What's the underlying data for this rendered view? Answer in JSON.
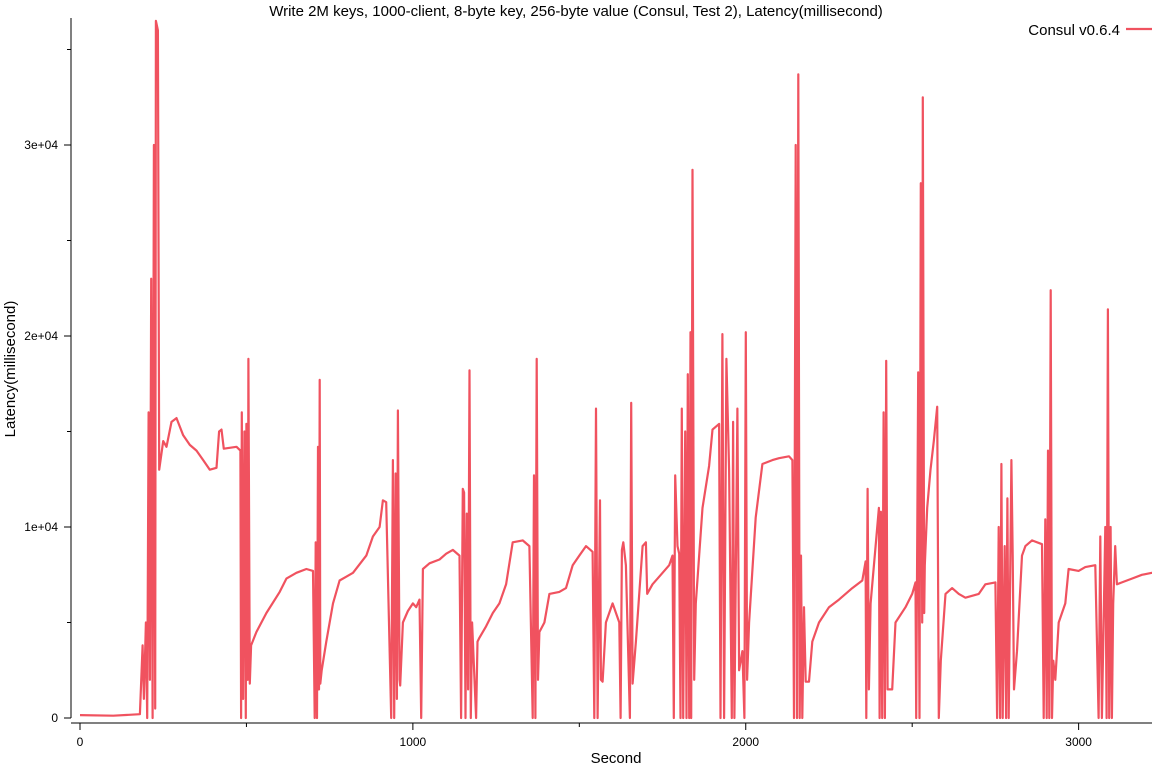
{
  "chart_data": {
    "type": "line",
    "title": "Write 2M keys, 1000-client, 8-byte key, 256-byte value (Consul, Test 2), Latency(millisecond)",
    "xlabel": "Second",
    "ylabel": "Latency(millisecond)",
    "xlim": [
      0,
      3250
    ],
    "ylim": [
      0,
      36500
    ],
    "x_ticks": [
      0,
      1000,
      2000,
      3000
    ],
    "x_tick_labels": [
      "0",
      "1000",
      "2000",
      "3000"
    ],
    "x_minor_ticks": [
      500,
      1500,
      2500
    ],
    "y_ticks": [
      0,
      10000,
      20000,
      30000
    ],
    "y_tick_labels": [
      "0",
      "1e+04",
      "2e+04",
      "3e+04"
    ],
    "y_minor_ticks": [
      5000,
      15000,
      25000,
      35000
    ],
    "grid": false,
    "legend_position": "top-right",
    "series": [
      {
        "name": "Consul v0.6.4",
        "color": "#f0525f",
        "points": [
          [
            0,
            150
          ],
          [
            100,
            120
          ],
          [
            180,
            200
          ],
          [
            188,
            3800
          ],
          [
            192,
            1000
          ],
          [
            198,
            5000
          ],
          [
            202,
            0
          ],
          [
            206,
            16000
          ],
          [
            210,
            2000
          ],
          [
            214,
            23000
          ],
          [
            218,
            0
          ],
          [
            222,
            30000
          ],
          [
            226,
            500
          ],
          [
            228,
            36500
          ],
          [
            234,
            36000
          ],
          [
            238,
            13000
          ],
          [
            250,
            14500
          ],
          [
            260,
            14200
          ],
          [
            275,
            15500
          ],
          [
            290,
            15700
          ],
          [
            310,
            14800
          ],
          [
            330,
            14300
          ],
          [
            350,
            14000
          ],
          [
            370,
            13500
          ],
          [
            390,
            13000
          ],
          [
            410,
            13100
          ],
          [
            418,
            15000
          ],
          [
            425,
            15100
          ],
          [
            432,
            14100
          ],
          [
            470,
            14200
          ],
          [
            482,
            14000
          ],
          [
            484,
            0
          ],
          [
            486,
            16000
          ],
          [
            490,
            1000
          ],
          [
            494,
            15000
          ],
          [
            498,
            0
          ],
          [
            500,
            15400
          ],
          [
            504,
            2000
          ],
          [
            506,
            18800
          ],
          [
            510,
            1800
          ],
          [
            514,
            3800
          ],
          [
            530,
            4500
          ],
          [
            560,
            5500
          ],
          [
            600,
            6600
          ],
          [
            620,
            7300
          ],
          [
            650,
            7600
          ],
          [
            680,
            7800
          ],
          [
            700,
            7700
          ],
          [
            705,
            0
          ],
          [
            708,
            9200
          ],
          [
            712,
            0
          ],
          [
            715,
            14200
          ],
          [
            718,
            1500
          ],
          [
            720,
            17700
          ],
          [
            722,
            1800
          ],
          [
            726,
            2500
          ],
          [
            740,
            4000
          ],
          [
            760,
            6000
          ],
          [
            780,
            7200
          ],
          [
            800,
            7400
          ],
          [
            820,
            7600
          ],
          [
            860,
            8500
          ],
          [
            880,
            9500
          ],
          [
            900,
            10000
          ],
          [
            910,
            11400
          ],
          [
            920,
            11300
          ],
          [
            935,
            0
          ],
          [
            940,
            13500
          ],
          [
            944,
            0
          ],
          [
            948,
            12800
          ],
          [
            952,
            1000
          ],
          [
            955,
            16100
          ],
          [
            960,
            2000
          ],
          [
            962,
            1700
          ],
          [
            970,
            5000
          ],
          [
            985,
            5600
          ],
          [
            1000,
            6000
          ],
          [
            1010,
            5800
          ],
          [
            1020,
            6200
          ],
          [
            1025,
            0
          ],
          [
            1030,
            7800
          ],
          [
            1050,
            8100
          ],
          [
            1080,
            8300
          ],
          [
            1100,
            8600
          ],
          [
            1120,
            8800
          ],
          [
            1140,
            8500
          ],
          [
            1145,
            0
          ],
          [
            1150,
            12000
          ],
          [
            1154,
            11800
          ],
          [
            1158,
            0
          ],
          [
            1162,
            10700
          ],
          [
            1166,
            1500
          ],
          [
            1170,
            18200
          ],
          [
            1174,
            0
          ],
          [
            1178,
            5000
          ],
          [
            1190,
            0
          ],
          [
            1194,
            4000
          ],
          [
            1200,
            4200
          ],
          [
            1220,
            4800
          ],
          [
            1240,
            5500
          ],
          [
            1260,
            6000
          ],
          [
            1280,
            7000
          ],
          [
            1300,
            9200
          ],
          [
            1330,
            9300
          ],
          [
            1350,
            9000
          ],
          [
            1360,
            0
          ],
          [
            1364,
            12700
          ],
          [
            1368,
            0
          ],
          [
            1372,
            18800
          ],
          [
            1376,
            2000
          ],
          [
            1380,
            4500
          ],
          [
            1395,
            5000
          ],
          [
            1410,
            6500
          ],
          [
            1440,
            6600
          ],
          [
            1460,
            6800
          ],
          [
            1480,
            8000
          ],
          [
            1500,
            8500
          ],
          [
            1520,
            9000
          ],
          [
            1540,
            8700
          ],
          [
            1545,
            0
          ],
          [
            1550,
            16200
          ],
          [
            1555,
            0
          ],
          [
            1562,
            11400
          ],
          [
            1565,
            2000
          ],
          [
            1570,
            1900
          ],
          [
            1580,
            5000
          ],
          [
            1600,
            6000
          ],
          [
            1620,
            5000
          ],
          [
            1624,
            0
          ],
          [
            1628,
            8800
          ],
          [
            1632,
            9200
          ],
          [
            1640,
            8000
          ],
          [
            1652,
            0
          ],
          [
            1656,
            16500
          ],
          [
            1660,
            1800
          ],
          [
            1670,
            4000
          ],
          [
            1690,
            9000
          ],
          [
            1700,
            9200
          ],
          [
            1704,
            6500
          ],
          [
            1720,
            7000
          ],
          [
            1740,
            7400
          ],
          [
            1770,
            8000
          ],
          [
            1780,
            8500
          ],
          [
            1784,
            0
          ],
          [
            1788,
            12700
          ],
          [
            1795,
            9000
          ],
          [
            1800,
            8600
          ],
          [
            1804,
            0
          ],
          [
            1808,
            16200
          ],
          [
            1812,
            0
          ],
          [
            1818,
            15000
          ],
          [
            1822,
            0
          ],
          [
            1826,
            18000
          ],
          [
            1830,
            0
          ],
          [
            1834,
            20200
          ],
          [
            1836,
            0
          ],
          [
            1840,
            28700
          ],
          [
            1845,
            2000
          ],
          [
            1850,
            6000
          ],
          [
            1870,
            11000
          ],
          [
            1890,
            13200
          ],
          [
            1900,
            15100
          ],
          [
            1920,
            15400
          ],
          [
            1924,
            0
          ],
          [
            1930,
            20100
          ],
          [
            1935,
            0
          ],
          [
            1942,
            18800
          ],
          [
            1950,
            13000
          ],
          [
            1958,
            0
          ],
          [
            1962,
            15500
          ],
          [
            1966,
            0
          ],
          [
            1975,
            16200
          ],
          [
            1980,
            2500
          ],
          [
            1990,
            3500
          ],
          [
            1996,
            0
          ],
          [
            2000,
            20200
          ],
          [
            2004,
            2000
          ],
          [
            2010,
            5000
          ],
          [
            2030,
            10500
          ],
          [
            2050,
            13300
          ],
          [
            2080,
            13500
          ],
          [
            2100,
            13600
          ],
          [
            2130,
            13700
          ],
          [
            2140,
            13500
          ],
          [
            2145,
            0
          ],
          [
            2150,
            30000
          ],
          [
            2154,
            0
          ],
          [
            2158,
            33700
          ],
          [
            2162,
            0
          ],
          [
            2166,
            8500
          ],
          [
            2170,
            0
          ],
          [
            2175,
            5800
          ],
          [
            2180,
            1900
          ],
          [
            2190,
            1900
          ],
          [
            2200,
            4000
          ],
          [
            2220,
            5000
          ],
          [
            2250,
            5800
          ],
          [
            2280,
            6200
          ],
          [
            2320,
            6800
          ],
          [
            2350,
            7200
          ],
          [
            2360,
            8200
          ],
          [
            2362,
            0
          ],
          [
            2366,
            12000
          ],
          [
            2370,
            1500
          ],
          [
            2375,
            6000
          ],
          [
            2390,
            9000
          ],
          [
            2400,
            11000
          ],
          [
            2402,
            0
          ],
          [
            2406,
            10800
          ],
          [
            2410,
            0
          ],
          [
            2414,
            16000
          ],
          [
            2418,
            0
          ],
          [
            2422,
            18700
          ],
          [
            2426,
            1500
          ],
          [
            2440,
            1500
          ],
          [
            2450,
            5000
          ],
          [
            2480,
            5800
          ],
          [
            2500,
            6500
          ],
          [
            2510,
            7100
          ],
          [
            2512,
            0
          ],
          [
            2518,
            18100
          ],
          [
            2522,
            0
          ],
          [
            2526,
            28000
          ],
          [
            2530,
            5000
          ],
          [
            2532,
            32500
          ],
          [
            2536,
            5500
          ],
          [
            2538,
            8000
          ],
          [
            2545,
            11000
          ],
          [
            2555,
            13000
          ],
          [
            2565,
            14500
          ],
          [
            2575,
            16300
          ],
          [
            2580,
            0
          ],
          [
            2586,
            3000
          ],
          [
            2600,
            6500
          ],
          [
            2620,
            6800
          ],
          [
            2640,
            6500
          ],
          [
            2660,
            6300
          ],
          [
            2680,
            6400
          ],
          [
            2700,
            6500
          ],
          [
            2720,
            7000
          ],
          [
            2750,
            7100
          ],
          [
            2755,
            0
          ],
          [
            2760,
            10000
          ],
          [
            2764,
            0
          ],
          [
            2768,
            13300
          ],
          [
            2772,
            0
          ],
          [
            2778,
            9000
          ],
          [
            2782,
            0
          ],
          [
            2786,
            11500
          ],
          [
            2790,
            0
          ],
          [
            2798,
            13500
          ],
          [
            2802,
            8500
          ],
          [
            2806,
            1500
          ],
          [
            2815,
            3500
          ],
          [
            2830,
            8500
          ],
          [
            2840,
            9000
          ],
          [
            2860,
            9300
          ],
          [
            2890,
            9100
          ],
          [
            2895,
            0
          ],
          [
            2900,
            10400
          ],
          [
            2904,
            0
          ],
          [
            2908,
            14000
          ],
          [
            2912,
            0
          ],
          [
            2916,
            22400
          ],
          [
            2920,
            0
          ],
          [
            2924,
            3000
          ],
          [
            2930,
            2000
          ],
          [
            2940,
            5000
          ],
          [
            2960,
            6000
          ],
          [
            2970,
            7800
          ],
          [
            3000,
            7700
          ],
          [
            3020,
            7900
          ],
          [
            3050,
            8000
          ],
          [
            3060,
            0
          ],
          [
            3065,
            9500
          ],
          [
            3070,
            0
          ],
          [
            3080,
            10000
          ],
          [
            3084,
            0
          ],
          [
            3088,
            21400
          ],
          [
            3092,
            0
          ],
          [
            3096,
            10000
          ],
          [
            3100,
            0
          ],
          [
            3104,
            6000
          ],
          [
            3110,
            9000
          ],
          [
            3115,
            7000
          ],
          [
            3130,
            7100
          ],
          [
            3160,
            7300
          ],
          [
            3190,
            7500
          ],
          [
            3220,
            7600
          ],
          [
            3250,
            7500
          ]
        ]
      }
    ]
  }
}
